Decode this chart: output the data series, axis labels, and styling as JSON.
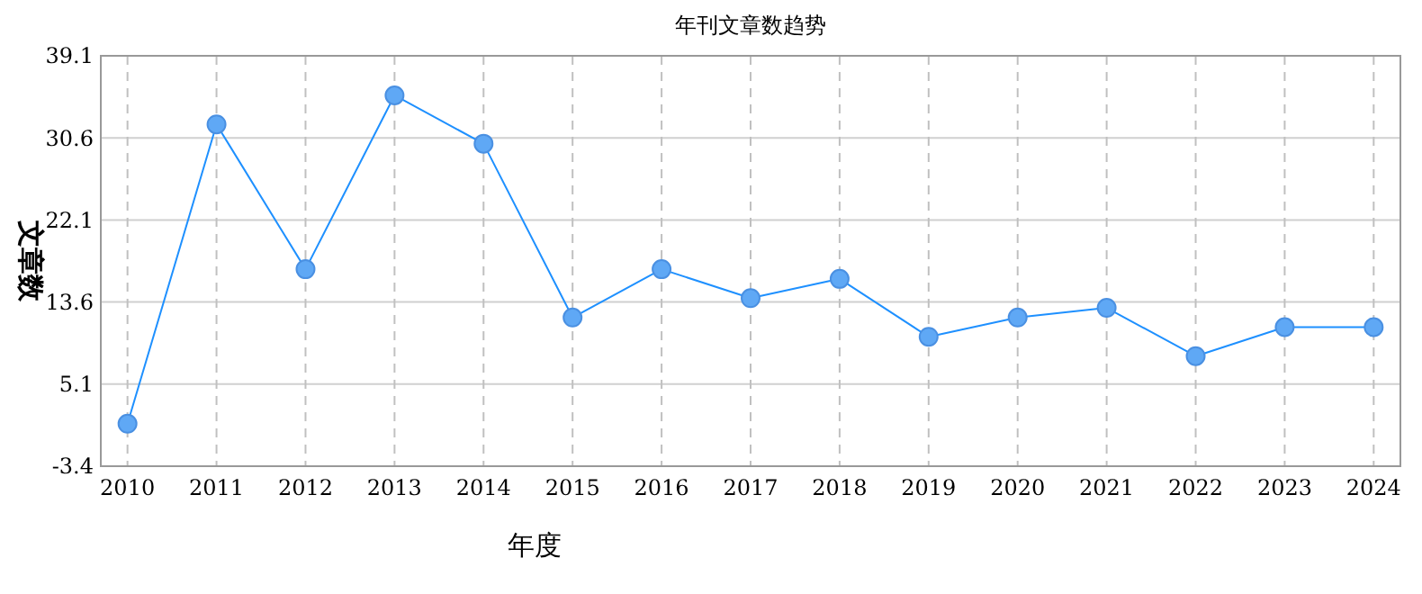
{
  "chart_data": {
    "type": "line",
    "title": "年刊文章数趋势",
    "xlabel": "年度",
    "ylabel": "文章数",
    "categories": [
      "2010",
      "2011",
      "2012",
      "2013",
      "2014",
      "2015",
      "2016",
      "2017",
      "2018",
      "2019",
      "2020",
      "2021",
      "2022",
      "2023",
      "2024"
    ],
    "series": [
      {
        "color": "#1e90ff",
        "values": [
          1,
          32,
          17,
          35,
          30,
          12,
          17,
          14,
          16,
          10,
          12,
          13,
          8,
          11,
          11
        ]
      }
    ],
    "ylim": [
      -3.4,
      39.1
    ],
    "yticks": [
      -3.4,
      5.1,
      13.6,
      22.1,
      30.6,
      39.1
    ],
    "grid": true,
    "marker": "circle",
    "line_style": "solid"
  }
}
